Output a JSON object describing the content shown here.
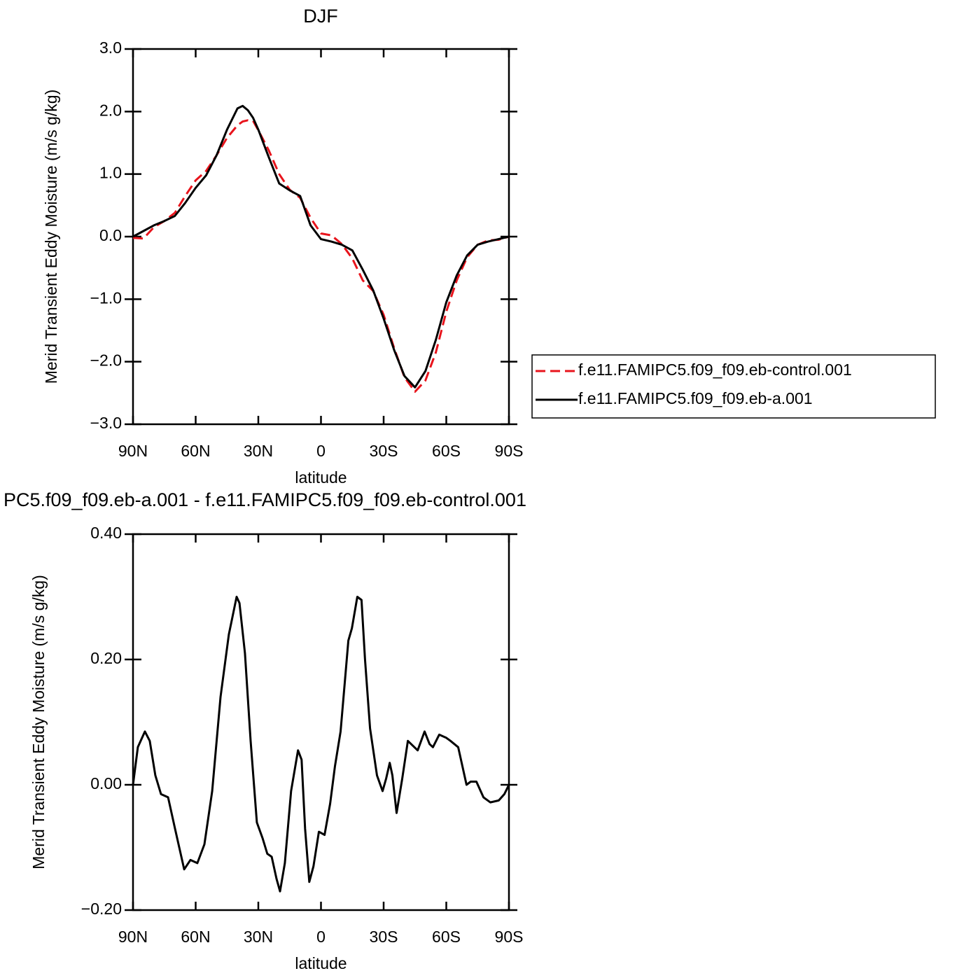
{
  "chart_data": [
    {
      "type": "line",
      "title": "DJF",
      "xlabel": "latitude",
      "ylabel": "Merid Transient Eddy Moisture (m/s g/kg)",
      "x": [
        90,
        85,
        80,
        75,
        70,
        65,
        60,
        55,
        50,
        45,
        40,
        37.5,
        35,
        32.5,
        30,
        25,
        20,
        15,
        10,
        5,
        0,
        -5,
        -10,
        -15,
        -20,
        -25,
        -30,
        -35,
        -40,
        -45,
        -50,
        -55,
        -60,
        -65,
        -70,
        -75,
        -80,
        -85,
        -90
      ],
      "xlim": [
        90,
        -90
      ],
      "xticks": [
        {
          "value": 90,
          "label": "90N"
        },
        {
          "value": 60,
          "label": "60N"
        },
        {
          "value": 30,
          "label": "30N"
        },
        0,
        {
          "value": -30,
          "label": "30S"
        },
        {
          "value": -60,
          "label": "60S"
        },
        {
          "value": -90,
          "label": "90S"
        }
      ],
      "ylim": [
        -3,
        3
      ],
      "yticks": [
        {
          "value": -3,
          "label": "−3.0"
        },
        {
          "value": -2,
          "label": "−2.0"
        },
        {
          "value": -1,
          "label": "−1.0"
        },
        {
          "value": 0,
          "label": "0.0"
        },
        {
          "value": 1,
          "label": "1.0"
        },
        {
          "value": 2,
          "label": "2.0"
        },
        {
          "value": 3,
          "label": "3.0"
        }
      ],
      "series": [
        {
          "name": "f.e11.FAMIPC5.f09_f09.eb-control.001",
          "color": "#e8141c",
          "dashed": true,
          "values": [
            -0.02,
            -0.03,
            0.15,
            0.25,
            0.38,
            0.65,
            0.9,
            1.05,
            1.3,
            1.58,
            1.78,
            1.84,
            1.86,
            1.85,
            1.7,
            1.38,
            1.0,
            0.75,
            0.62,
            0.3,
            0.05,
            0.02,
            -0.12,
            -0.35,
            -0.7,
            -0.87,
            -1.25,
            -1.78,
            -2.25,
            -2.48,
            -2.3,
            -1.85,
            -1.2,
            -0.7,
            -0.33,
            -0.13,
            -0.06,
            -0.05,
            0
          ]
        },
        {
          "name": "f.e11.FAMIPC5.f09_f09.eb-a.001",
          "color": "#000000",
          "dashed": false,
          "values": [
            0,
            0.09,
            0.18,
            0.25,
            0.33,
            0.54,
            0.78,
            0.98,
            1.3,
            1.71,
            2.05,
            2.09,
            2.02,
            1.9,
            1.71,
            1.27,
            0.85,
            0.74,
            0.65,
            0.18,
            -0.04,
            -0.08,
            -0.13,
            -0.22,
            -0.53,
            -0.86,
            -1.31,
            -1.81,
            -2.23,
            -2.41,
            -2.15,
            -1.65,
            -1.05,
            -0.62,
            -0.3,
            -0.13,
            -0.08,
            -0.04,
            0
          ]
        }
      ]
    },
    {
      "type": "line",
      "title": "PC5.f09_f09.eb-a.001 - f.e11.FAMIPC5.f09_f09.eb-control.001",
      "xlabel": "latitude",
      "ylabel": "Merid Transient Eddy Moisture (m/s g/kg)",
      "x": [
        90,
        87.7,
        84.3,
        82,
        79.3,
        76.6,
        73.2,
        69.9,
        65.5,
        62.5,
        59.2,
        55.8,
        52.1,
        48.1,
        44.1,
        40.4,
        39,
        36.4,
        33.7,
        30.7,
        28,
        25.7,
        23.6,
        21.3,
        19.6,
        17.3,
        14.3,
        11,
        9.3,
        7.6,
        5.6,
        3.6,
        1,
        -1.7,
        -4.4,
        -6.7,
        -9.4,
        -13.1,
        -14.8,
        -17.4,
        -19.4,
        -21.1,
        -23.5,
        -26.8,
        -29.5,
        -31.2,
        -32.9,
        -34.2,
        -36.2,
        -38.9,
        -41.6,
        -46.3,
        -49.6,
        -52,
        -53.6,
        -56.6,
        -60,
        -62,
        -65.7,
        -69.7,
        -71.7,
        -74.4,
        -77.8,
        -81.1,
        -85.1,
        -87.8,
        -90
      ],
      "xlim": [
        90,
        -90
      ],
      "xticks": [
        {
          "value": 90,
          "label": "90N"
        },
        {
          "value": 60,
          "label": "60N"
        },
        {
          "value": 30,
          "label": "30N"
        },
        0,
        {
          "value": -30,
          "label": "30S"
        },
        {
          "value": -60,
          "label": "60S"
        },
        {
          "value": -90,
          "label": "90S"
        }
      ],
      "ylim": [
        -0.2,
        0.4
      ],
      "yticks": [
        {
          "value": -0.2,
          "label": "−0.20"
        },
        {
          "value": 0,
          "label": "0.00"
        },
        {
          "value": 0.2,
          "label": "0.20"
        },
        {
          "value": 0.4,
          "label": "0.40"
        }
      ],
      "series": [
        {
          "color": "#000000",
          "dashed": false,
          "values": [
            0,
            0.06,
            0.085,
            0.07,
            0.015,
            -0.015,
            -0.02,
            -0.07,
            -0.135,
            -0.12,
            -0.125,
            -0.095,
            -0.01,
            0.14,
            0.24,
            0.3,
            0.29,
            0.21,
            0.07,
            -0.06,
            -0.085,
            -0.11,
            -0.115,
            -0.15,
            -0.17,
            -0.125,
            -0.01,
            0.055,
            0.04,
            -0.07,
            -0.155,
            -0.13,
            -0.075,
            -0.08,
            -0.03,
            0.03,
            0.085,
            0.23,
            0.25,
            0.3,
            0.295,
            0.2,
            0.09,
            0.015,
            -0.01,
            0.01,
            0.035,
            0.015,
            -0.045,
            0.01,
            0.07,
            0.055,
            0.085,
            0.065,
            0.06,
            0.08,
            0.075,
            0.07,
            0.06,
            0,
            0.005,
            0.005,
            -0.02,
            -0.028,
            -0.025,
            -0.015,
            0
          ]
        }
      ]
    }
  ]
}
